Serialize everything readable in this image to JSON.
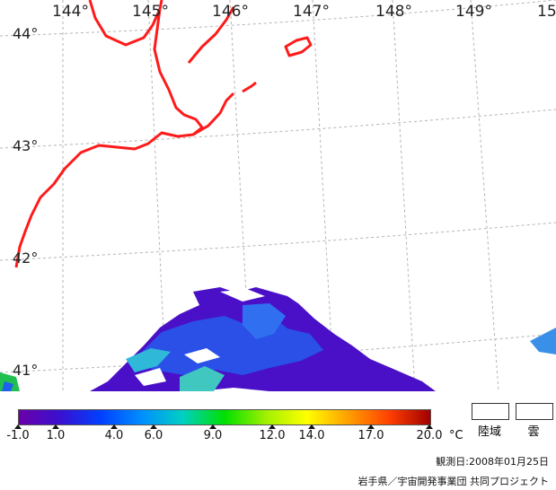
{
  "map": {
    "longitude_labels": [
      "144°",
      "145°",
      "146°",
      "147°",
      "148°",
      "149°",
      "15"
    ],
    "latitude_labels": [
      "44°",
      "43°",
      "42°",
      "41°"
    ],
    "colors": {
      "coastline": "#ff1a1a",
      "grid": "#b4b4b4",
      "sst_cold": "#4a10c8",
      "sst_mid": "#2060f0",
      "sst_warm": "#30d0d0",
      "sst_green": "#20c050"
    }
  },
  "colorbar": {
    "tick_labels": [
      "-1.0",
      "1.0",
      "4.0",
      "6.0",
      "9.0",
      "12.0",
      "14.0",
      "17.0",
      "20.0"
    ],
    "unit": "°C",
    "colors": [
      "#6a00a8",
      "#3a10d0",
      "#0040ff",
      "#0090ff",
      "#00d0c0",
      "#00e000",
      "#a0f000",
      "#ffff00",
      "#ffa000",
      "#ff4000",
      "#a00000"
    ]
  },
  "legend": {
    "land_label": "陸域",
    "cloud_label": "雲"
  },
  "footer": {
    "observation_date": "観測日:2008年01月25日",
    "credit": "岩手県／宇宙開発事業団 共同プロジェクト"
  }
}
